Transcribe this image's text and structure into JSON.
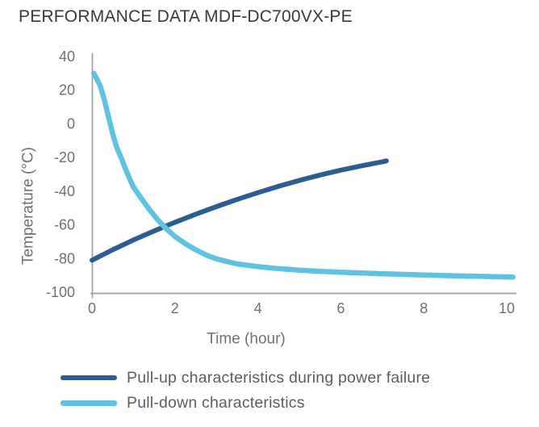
{
  "title": "PERFORMANCE DATA MDF-DC700VX-PE",
  "colors": {
    "pull_up_line": "#2b5c92",
    "pull_down_line": "#5ec3e2",
    "axis": "#9da0a3",
    "tick_text": "#6e7073",
    "title_text": "#39393b",
    "legend_text": "#5c5d60"
  },
  "chart_data": {
    "type": "line",
    "title": "PERFORMANCE DATA MDF-DC700VX-PE",
    "xlabel": "Time (hour)",
    "ylabel": "Temperature (°C)",
    "xlim": [
      0,
      10
    ],
    "ylim": [
      -100,
      40
    ],
    "xticks": [
      0,
      2,
      4,
      6,
      8,
      10
    ],
    "yticks": [
      40,
      20,
      0,
      -20,
      -40,
      -60,
      -80,
      -100
    ],
    "grid": false,
    "legend_position": "bottom-left",
    "axis_color": "#9da0a3",
    "series": [
      {
        "name": "Pull-up characteristics during power failure",
        "color": "#2b5c92",
        "points": [
          [
            0,
            -81
          ],
          [
            0.5,
            -74.8
          ],
          [
            1,
            -69
          ],
          [
            1.5,
            -63.6
          ],
          [
            2,
            -58.5
          ],
          [
            2.5,
            -53.7
          ],
          [
            3,
            -49.2
          ],
          [
            3.5,
            -44.9
          ],
          [
            4,
            -40.9
          ],
          [
            4.5,
            -37.1
          ],
          [
            5,
            -33.6
          ],
          [
            5.5,
            -30.4
          ],
          [
            6,
            -27.5
          ],
          [
            6.5,
            -24.9
          ],
          [
            7,
            -22.5
          ],
          [
            7.1,
            -22
          ]
        ]
      },
      {
        "name": "Pull-down characteristics",
        "color": "#5ec3e2",
        "points": [
          [
            0.04,
            30
          ],
          [
            0.1,
            27.5
          ],
          [
            0.2,
            22.5
          ],
          [
            0.3,
            14.2
          ],
          [
            0.4,
            3.9
          ],
          [
            0.5,
            -6
          ],
          [
            0.6,
            -14.2
          ],
          [
            0.7,
            -19.9
          ],
          [
            0.8,
            -26.3
          ],
          [
            0.9,
            -32.2
          ],
          [
            1.0,
            -37.6
          ],
          [
            1.2,
            -44.6
          ],
          [
            1.4,
            -51.5
          ],
          [
            1.6,
            -57.4
          ],
          [
            1.8,
            -62.5
          ],
          [
            2.0,
            -66.9
          ],
          [
            2.25,
            -71.2
          ],
          [
            2.5,
            -74.8
          ],
          [
            2.75,
            -77.9
          ],
          [
            3.0,
            -80.2
          ],
          [
            3.5,
            -83.2
          ],
          [
            4.0,
            -84.8
          ],
          [
            4.5,
            -86.0
          ],
          [
            5.0,
            -86.9
          ],
          [
            5.5,
            -87.6
          ],
          [
            6.0,
            -88.1
          ],
          [
            6.5,
            -88.6
          ],
          [
            7.0,
            -89.0
          ],
          [
            7.5,
            -89.4
          ],
          [
            8.0,
            -89.8
          ],
          [
            9.0,
            -90.4
          ],
          [
            10.15,
            -91
          ]
        ]
      }
    ]
  }
}
